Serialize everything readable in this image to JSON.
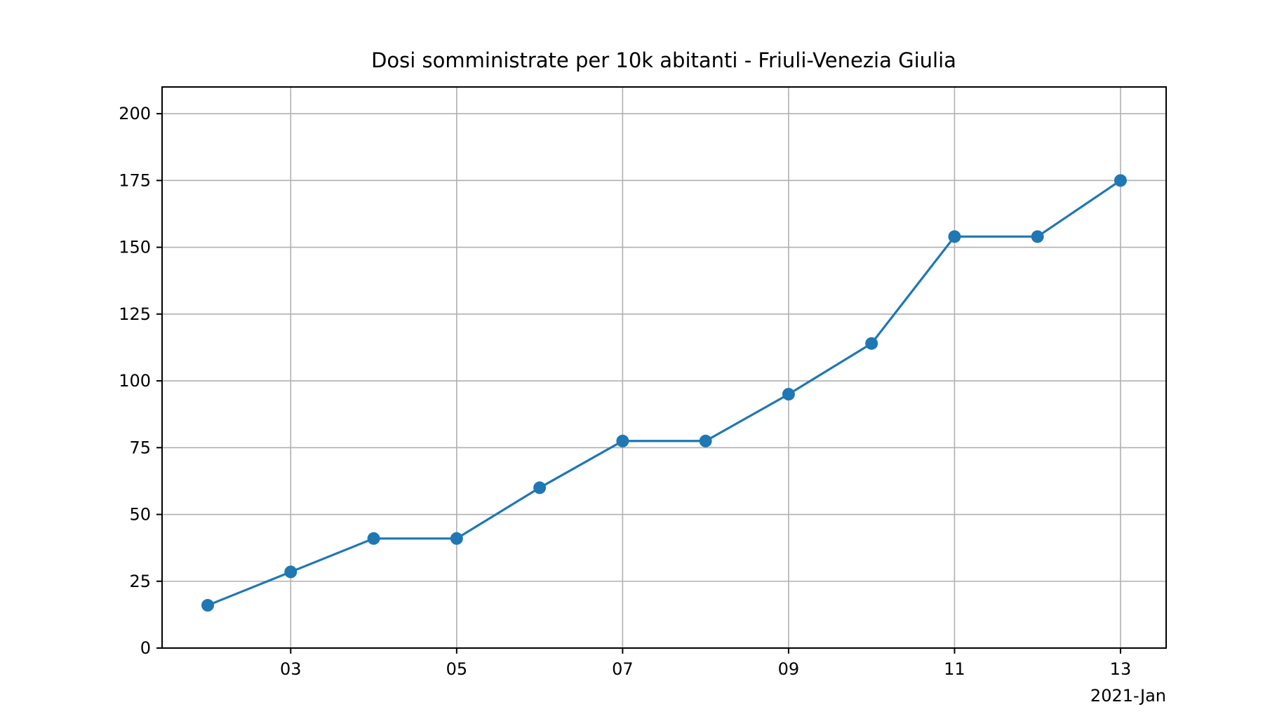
{
  "chart_data": {
    "type": "line",
    "title": "Dosi somministrate per 10k abitanti - Friuli-Venezia Giulia",
    "xlabel": "",
    "ylabel": "",
    "x_offset_label": "2021-Jan",
    "x": [
      "2021-01-02",
      "2021-01-03",
      "2021-01-04",
      "2021-01-05",
      "2021-01-06",
      "2021-01-07",
      "2021-01-08",
      "2021-01-09",
      "2021-01-10",
      "2021-01-11",
      "2021-01-12",
      "2021-01-13"
    ],
    "series": [
      {
        "values": [
          16,
          28.5,
          41,
          41,
          60,
          77.5,
          77.5,
          95,
          114,
          154,
          154,
          175
        ],
        "color": "#1f77b4",
        "marker": "circle"
      }
    ],
    "xticks": [
      {
        "date": "2021-01-03",
        "label": "03"
      },
      {
        "date": "2021-01-05",
        "label": "05"
      },
      {
        "date": "2021-01-07",
        "label": "07"
      },
      {
        "date": "2021-01-09",
        "label": "09"
      },
      {
        "date": "2021-01-11",
        "label": "11"
      },
      {
        "date": "2021-01-13",
        "label": "13"
      }
    ],
    "yticks": [
      0,
      25,
      50,
      75,
      100,
      125,
      150,
      175,
      200
    ],
    "ylim": [
      0,
      210
    ],
    "xlim": [
      "2021-01-01",
      "2021-01-13"
    ],
    "grid": true,
    "legend": false
  }
}
